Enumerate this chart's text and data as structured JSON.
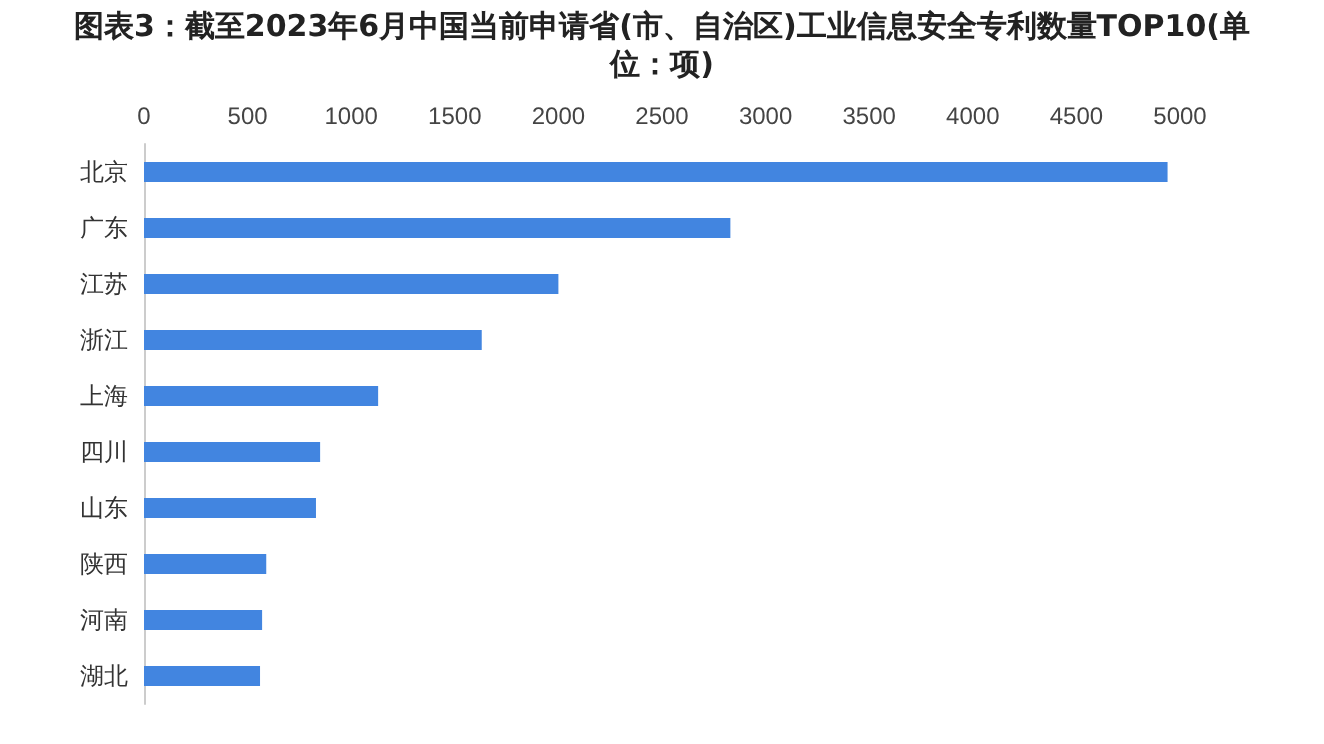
{
  "chart_data": {
    "type": "bar",
    "orientation": "horizontal",
    "title": "图表3：截至2023年6月中国当前申请省(市、自治区)工业信息安全专利数量TOP10(单位：项)",
    "categories": [
      "北京",
      "广东",
      "江苏",
      "浙江",
      "上海",
      "四川",
      "山东",
      "陕西",
      "河南",
      "湖北"
    ],
    "values": [
      4940,
      2830,
      2000,
      1630,
      1130,
      850,
      830,
      590,
      570,
      560
    ],
    "color": "#4285e0",
    "xlim": [
      0,
      5000
    ],
    "xticks": [
      0,
      500,
      1000,
      1500,
      2000,
      2500,
      3000,
      3500,
      4000,
      4500,
      5000
    ],
    "grid": false
  }
}
